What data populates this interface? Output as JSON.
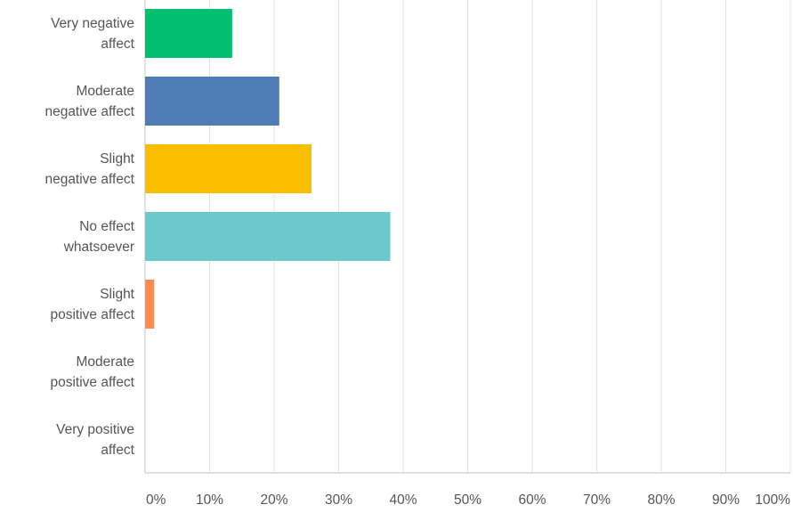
{
  "chart_data": {
    "type": "bar",
    "orientation": "horizontal",
    "categories": [
      [
        "Very negative",
        "affect"
      ],
      [
        "Moderate",
        "negative affect"
      ],
      [
        "Slight",
        "negative affect"
      ],
      [
        "No effect",
        "whatsoever"
      ],
      [
        "Slight",
        "positive affect"
      ],
      [
        "Moderate",
        "positive affect"
      ],
      [
        "Very positive",
        "affect"
      ]
    ],
    "values": [
      13.5,
      20.8,
      25.8,
      38.0,
      1.4,
      0,
      0
    ],
    "colors": [
      "#00bf6f",
      "#507cb6",
      "#f9be00",
      "#6bc8cd",
      "#ff8b4f",
      "#7d8d9c",
      "#ab3a4d"
    ],
    "xlim": [
      0,
      100
    ],
    "ticks": [
      0,
      10,
      20,
      30,
      40,
      50,
      60,
      70,
      80,
      90,
      100
    ],
    "tick_labels": [
      "0%",
      "10%",
      "20%",
      "30%",
      "40%",
      "50%",
      "60%",
      "70%",
      "80%",
      "90%",
      "100%"
    ],
    "grid": true,
    "title": "",
    "xlabel": "",
    "ylabel": ""
  }
}
